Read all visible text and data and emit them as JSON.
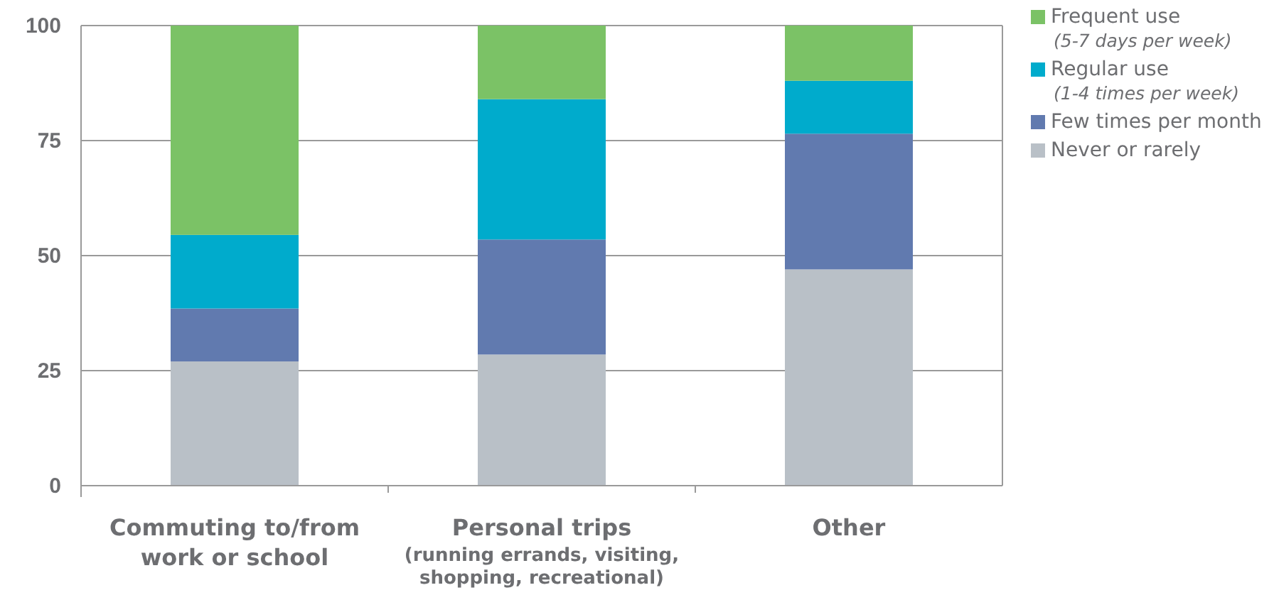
{
  "chart_data": {
    "type": "bar",
    "stacked": true,
    "categories": [
      "Commuting to/from\nwork or school",
      "Personal trips\n(running errands, visiting,\nshopping, recreational)",
      "Other"
    ],
    "series": [
      {
        "name": "Never or rarely",
        "color": "#b9c0c7",
        "values": [
          27,
          28.5,
          47
        ]
      },
      {
        "name": "Few times per month",
        "color": "#617aaf",
        "values": [
          11.5,
          25,
          29.5
        ]
      },
      {
        "name": "Regular use\n(1-4 times per week)",
        "color": "#00abcc",
        "values": [
          16,
          30.5,
          11.5
        ]
      },
      {
        "name": "Frequent use\n(5-7 days per week)",
        "color": "#7bc266",
        "values": [
          45.5,
          16,
          12
        ]
      }
    ],
    "ylim": [
      0,
      100
    ],
    "yticks": [
      0,
      25,
      50,
      75,
      100
    ],
    "grid": "y",
    "legend": "right"
  }
}
